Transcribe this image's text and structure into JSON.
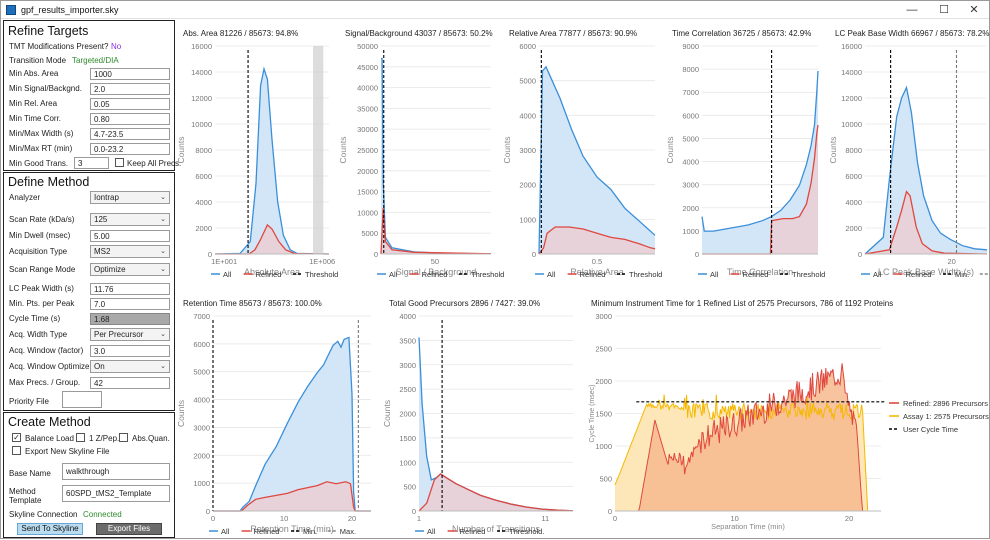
{
  "window": {
    "title": "gpf_results_importer.sky",
    "minimize_label": "—",
    "maximize_label": "☐",
    "close_label": "✕"
  },
  "refine": {
    "title": "Refine Targets",
    "tmt_label": "TMT Modifications Present?",
    "tmt_value": "No",
    "transition_mode_label": "Transition Mode",
    "transition_mode_value": "Targeted/DIA",
    "fields": [
      {
        "label": "Min Abs. Area",
        "value": "1000"
      },
      {
        "label": "Min Signal/Backgnd.",
        "value": "2.0"
      },
      {
        "label": "Min Rel. Area",
        "value": "0.05"
      },
      {
        "label": "Min Time Corr.",
        "value": "0.80"
      },
      {
        "label": "Min/Max Width (s)",
        "value": "4.7-23.5"
      },
      {
        "label": "Min/Max RT (min)",
        "value": "0.0-23.2"
      }
    ],
    "min_good_label": "Min Good Trans.",
    "min_good_value": "3",
    "keep_all_label": "Keep All Precs."
  },
  "define": {
    "title": "Define Method",
    "rows": [
      {
        "label": "Analyzer",
        "value": "Iontrap",
        "kind": "select"
      },
      {
        "label": "Scan Rate (kDa/s)",
        "value": "125",
        "kind": "select"
      },
      {
        "label": "Min Dwell (msec)",
        "value": "5.00",
        "kind": "input"
      },
      {
        "label": "Acquisition Type",
        "value": "MS2",
        "kind": "select"
      },
      {
        "label": "Scan Range Mode",
        "value": "Optimize",
        "kind": "select"
      },
      {
        "label": "LC Peak Width (s)",
        "value": "11.76",
        "kind": "input"
      },
      {
        "label": "Min. Pts. per Peak",
        "value": "7.0",
        "kind": "input"
      },
      {
        "label": "Cycle Time (s)",
        "value": "1.68",
        "kind": "readonly"
      },
      {
        "label": "Acq. Width Type",
        "value": "Per Precursor",
        "kind": "select"
      },
      {
        "label": "Acq. Window (factor)",
        "value": "3.0",
        "kind": "input"
      },
      {
        "label": "Acq. Window Optimize",
        "value": "On",
        "kind": "select"
      },
      {
        "label": "Max Precs. / Group.",
        "value": "42",
        "kind": "input"
      }
    ],
    "priority_label": "Priority File"
  },
  "create": {
    "title": "Create Method",
    "balance_load_label": "Balance Load",
    "one_z_label": "1 Z/Pep.",
    "abs_quan_label": "Abs.Quan.",
    "export_label": "Export New Skyline File",
    "base_name_label": "Base Name",
    "base_name_value": "walkthrough",
    "method_template_label_1": "Method",
    "method_template_label_2": "Template",
    "method_template_value": "60SPD_tMS2_Template",
    "connection_label": "Skyline Connection",
    "connection_value": "Connected",
    "send_label": "Send To Skyline",
    "export_files_label": "Export Files"
  },
  "colors": {
    "all": "#3a8fd9",
    "all_fill": "#d2e6f7",
    "refined": "#e0473f",
    "refined_fill": "#e8cfd4",
    "assay": "#f5b800",
    "assay_fill": "#fde7b8",
    "refined_area": "#f7b98e",
    "threshold": "#000000"
  },
  "chart_data": [
    {
      "type": "area",
      "title": "Abs. Area 81226 / 85673: 94.8%",
      "xlabel": "Absolute Area",
      "ylabel": "Counts",
      "ylim": [
        0,
        16000
      ],
      "yticks": [
        0,
        2000,
        4000,
        6000,
        8000,
        10000,
        12000,
        14000,
        16000
      ],
      "xtick_labels": [
        "1E+001",
        "1E+006"
      ],
      "legend": [
        {
          "label": "All",
          "kind": "all"
        },
        {
          "label": "Refined",
          "kind": "refined"
        },
        {
          "label": "Threshold",
          "kind": "threshold"
        }
      ]
    },
    {
      "type": "area",
      "title": "Signal/Background 43037 / 85673: 50.2%",
      "xlabel": "Signal / Background",
      "ylabel": "Counts",
      "ylim": [
        0,
        50000
      ],
      "yticks": [
        0,
        5000,
        10000,
        15000,
        20000,
        25000,
        30000,
        35000,
        40000,
        45000,
        50000
      ],
      "xtick_labels": [
        "50"
      ],
      "legend": [
        {
          "label": "All",
          "kind": "all"
        },
        {
          "label": "Refined",
          "kind": "refined"
        },
        {
          "label": "Threshold",
          "kind": "threshold"
        }
      ]
    },
    {
      "type": "area",
      "title": "Relative Area 77877 / 85673: 90.9%",
      "xlabel": "Relative Area",
      "ylabel": "Counts",
      "ylim": [
        0,
        6000
      ],
      "yticks": [
        0,
        1000,
        2000,
        3000,
        4000,
        5000,
        6000
      ],
      "xtick_labels": [
        "0.5"
      ],
      "legend": [
        {
          "label": "All",
          "kind": "all"
        },
        {
          "label": "Refined",
          "kind": "refined"
        },
        {
          "label": "Threshold",
          "kind": "threshold"
        }
      ]
    },
    {
      "type": "area",
      "title": "Time Correlation 36725 / 85673: 42.9%",
      "xlabel": "Time Correlation",
      "ylabel": "Counts",
      "ylim": [
        0,
        9000
      ],
      "yticks": [
        0,
        1000,
        2000,
        3000,
        4000,
        5000,
        6000,
        7000,
        8000,
        9000
      ],
      "xtick_labels": [],
      "legend": [
        {
          "label": "All",
          "kind": "all"
        },
        {
          "label": "Refined",
          "kind": "refined"
        },
        {
          "label": "Threshold",
          "kind": "threshold"
        }
      ]
    },
    {
      "type": "area",
      "title": "LC Peak Base Width 66967 / 85673: 78.2%",
      "xlabel": "LC Peak Base Width (s)",
      "ylabel": "Counts",
      "ylim": [
        0,
        16000
      ],
      "yticks": [
        0,
        2000,
        4000,
        6000,
        8000,
        10000,
        12000,
        14000,
        16000
      ],
      "xtick_labels": [
        "20"
      ],
      "legend": [
        {
          "label": "All",
          "kind": "all"
        },
        {
          "label": "Refined",
          "kind": "refined"
        },
        {
          "label": "Min.",
          "kind": "threshold"
        },
        {
          "label": "Max.",
          "kind": "max"
        }
      ]
    },
    {
      "type": "area",
      "title": "Retention Time 85673 / 85673: 100.0%",
      "xlabel": "Retention Time (min)",
      "ylabel": "Counts",
      "ylim": [
        0,
        7000
      ],
      "yticks": [
        0,
        1000,
        2000,
        3000,
        4000,
        5000,
        6000,
        7000
      ],
      "xtick_labels": [
        "0",
        "10",
        "20"
      ],
      "legend": [
        {
          "label": "All",
          "kind": "all"
        },
        {
          "label": "Refined",
          "kind": "refined"
        },
        {
          "label": "Min.",
          "kind": "threshold"
        },
        {
          "label": "Max.",
          "kind": "max"
        }
      ]
    },
    {
      "type": "area",
      "title": "Total Good Precursors 2896 / 7427: 39.0%",
      "xlabel": "Number of Transitions",
      "ylabel": "Counts",
      "ylim": [
        0,
        4000
      ],
      "yticks": [
        0,
        500,
        1000,
        1500,
        2000,
        2500,
        3000,
        3500,
        4000
      ],
      "xtick_labels": [
        "1",
        "11"
      ],
      "legend": [
        {
          "label": "All",
          "kind": "all"
        },
        {
          "label": "Refined",
          "kind": "refined"
        },
        {
          "label": "Threshold.",
          "kind": "threshold"
        }
      ]
    },
    {
      "type": "area",
      "title": "Minimum Instrument Time for 1 Refined List of 2575 Precursors, 786 of 1192 Proteins",
      "xlabel": "Separation Time (min)",
      "ylabel": "Cycle Time (msec)",
      "ylim": [
        0,
        3000
      ],
      "yticks": [
        0,
        500,
        1000,
        1500,
        2000,
        2500,
        3000
      ],
      "xtick_labels": [
        "0",
        "10",
        "20"
      ],
      "user_cycle_time_msec": 1680,
      "legend": [
        {
          "label": "Refined: 2896 Precursors",
          "kind": "refined"
        },
        {
          "label": "Assay 1: 2575 Precursors",
          "kind": "assay"
        },
        {
          "label": "User Cycle Time",
          "kind": "threshold"
        }
      ]
    }
  ]
}
